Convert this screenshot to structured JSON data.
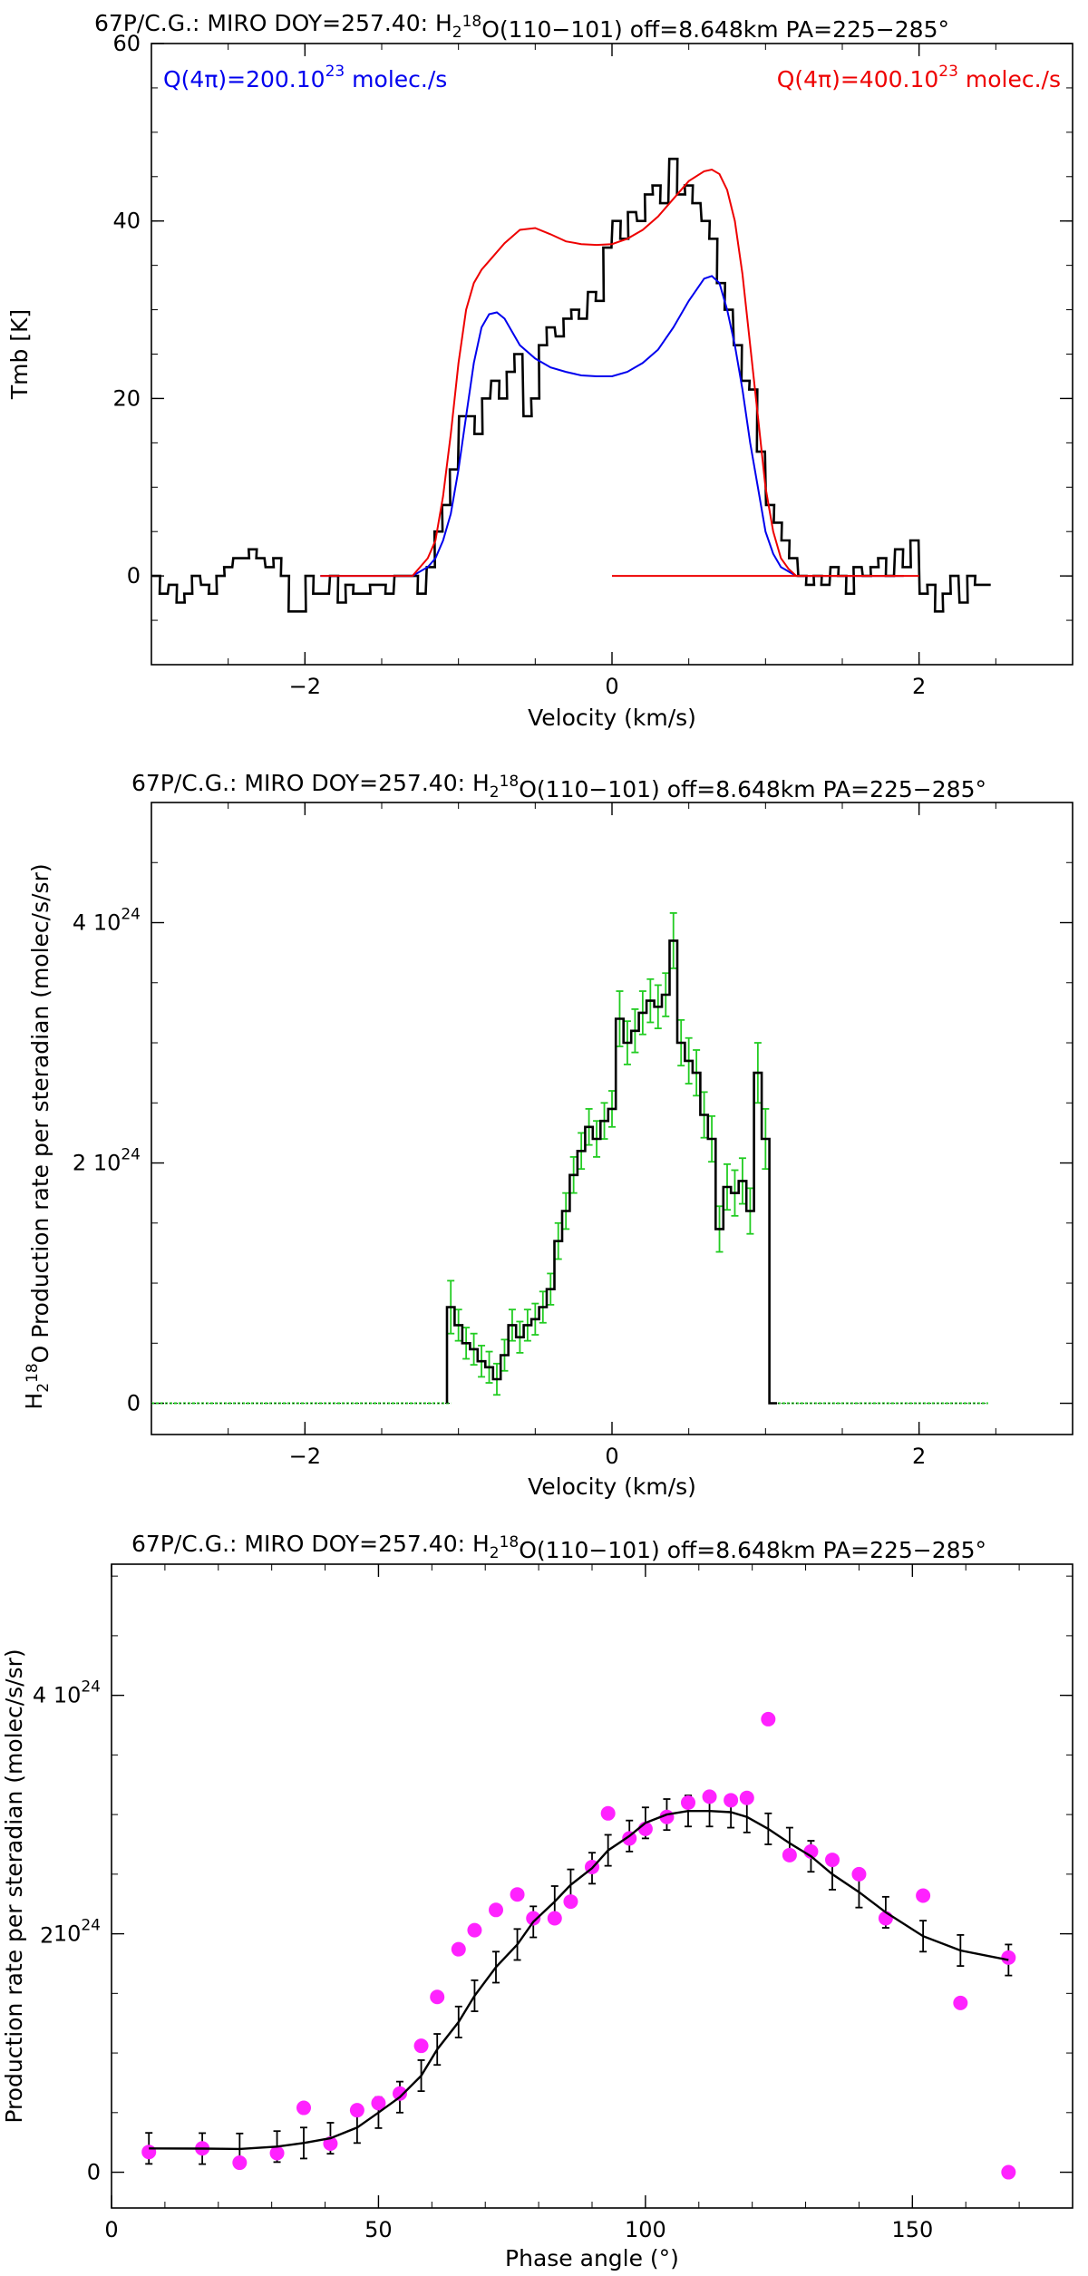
{
  "chart_data": [
    {
      "type": "line",
      "title_parts": [
        "67P/C.G.: MIRO DOY=257.40: H",
        "2",
        "18",
        "O(110−101) off=8.648km PA=225−285°"
      ],
      "xlabel": "Velocity (km/s)",
      "ylabel": "Tmb [K]",
      "xlim": [
        -3,
        3
      ],
      "ylim": [
        -10,
        60
      ],
      "xticks": [
        -2,
        0,
        2
      ],
      "xtick_labels": [
        "−2",
        "0",
        "2"
      ],
      "yticks": [
        0,
        20,
        40,
        60
      ],
      "ytick_labels": [
        "0",
        "20",
        "40",
        "60"
      ],
      "grid": false,
      "legend": "annotations at top-left and top-right",
      "annotations": [
        {
          "parts": [
            "Q(4π)=200.10",
            "23",
            " molec./s"
          ],
          "color": "#0000ee",
          "position": "top-left"
        },
        {
          "parts": [
            "Q(4π)=400.10",
            "23",
            " molec./s"
          ],
          "color": "#ee0000",
          "position": "top-right"
        }
      ],
      "series": [
        {
          "kind": "step",
          "color": "#000000",
          "x": [
            -2.97,
            -2.92,
            -2.86,
            -2.81,
            -2.76,
            -2.71,
            -2.65,
            -2.6,
            -2.55,
            -2.5,
            -2.44,
            -2.39,
            -2.34,
            -2.29,
            -2.23,
            -2.18,
            -2.13,
            -2.08,
            -2.02,
            -1.97,
            -1.92,
            -1.87,
            -1.81,
            -1.76,
            -1.71,
            -1.66,
            -1.6,
            -1.55,
            -1.5,
            -1.45,
            -1.39,
            -1.34,
            -1.29,
            -1.24,
            -1.18,
            -1.13,
            -1.08,
            -1.03,
            -0.97,
            -0.92,
            -0.87,
            -0.82,
            -0.76,
            -0.71,
            -0.66,
            -0.61,
            -0.55,
            -0.5,
            -0.45,
            -0.4,
            -0.34,
            -0.29,
            -0.24,
            -0.19,
            -0.13,
            -0.08,
            -0.03,
            0.03,
            0.08,
            0.13,
            0.19,
            0.24,
            0.29,
            0.34,
            0.4,
            0.45,
            0.5,
            0.55,
            0.61,
            0.66,
            0.71,
            0.76,
            0.82,
            0.87,
            0.92,
            0.97,
            1.03,
            1.08,
            1.13,
            1.18,
            1.24,
            1.29,
            1.34,
            1.39,
            1.45,
            1.5,
            1.55,
            1.6,
            1.66,
            1.71,
            1.76,
            1.81,
            1.87,
            1.92,
            1.97,
            2.03,
            2.08,
            2.13,
            2.18,
            2.23,
            2.29,
            2.34,
            2.39,
            2.44
          ],
          "y": [
            0,
            -2,
            -1,
            -3,
            -2,
            0,
            -1,
            -2,
            0,
            1,
            2,
            2,
            3,
            2,
            1,
            2,
            0,
            -4,
            -4,
            0,
            -2,
            -2,
            0,
            -3,
            -1,
            -2,
            -2,
            -1,
            -1,
            -2,
            0,
            0,
            0,
            -2,
            1,
            5,
            8,
            12,
            18,
            18,
            16,
            20,
            22,
            20,
            23,
            25,
            18,
            20,
            26,
            28,
            27,
            29,
            30,
            29,
            32,
            31,
            37,
            40,
            38,
            41,
            40,
            43,
            44,
            42,
            47,
            43,
            44,
            42,
            40,
            38,
            33,
            30,
            26,
            22,
            21,
            14,
            8,
            6,
            4,
            2,
            0,
            -1,
            0,
            -1,
            1,
            0,
            -2,
            1,
            0,
            1,
            2,
            0,
            3,
            1,
            4,
            -2,
            -1,
            -4,
            -2,
            0,
            -3,
            0,
            -1,
            -1
          ]
        },
        {
          "kind": "line",
          "color": "#0000ee",
          "x": [
            -1.9,
            -1.6,
            -1.3,
            -1.2,
            -1.15,
            -1.1,
            -1.05,
            -1.0,
            -0.95,
            -0.9,
            -0.85,
            -0.8,
            -0.75,
            -0.7,
            -0.65,
            -0.6,
            -0.5,
            -0.4,
            -0.3,
            -0.2,
            -0.1,
            0.0,
            0.1,
            0.2,
            0.3,
            0.4,
            0.5,
            0.6,
            0.65,
            0.7,
            0.75,
            0.8,
            0.85,
            0.9,
            0.95,
            1.0,
            1.05,
            1.1,
            1.15,
            1.2,
            1.3,
            1.6,
            1.9
          ],
          "y": [
            0,
            0,
            0,
            1,
            2,
            4,
            7,
            12,
            18,
            24,
            28,
            29.5,
            29.7,
            29,
            27.5,
            26,
            24.5,
            23.5,
            23,
            22.6,
            22.5,
            22.5,
            23,
            24,
            25.5,
            28,
            31,
            33.5,
            33.8,
            33,
            30,
            26,
            21,
            15,
            10,
            5,
            2.5,
            1,
            0.5,
            0,
            0,
            0,
            0
          ]
        },
        {
          "kind": "line",
          "color": "#ee0000",
          "x": [
            -1.9,
            -1.6,
            -1.3,
            -1.2,
            -1.15,
            -1.1,
            -1.05,
            -1.0,
            -0.95,
            -0.9,
            -0.85,
            -0.8,
            -0.7,
            -0.6,
            -0.5,
            -0.4,
            -0.3,
            -0.2,
            -0.1,
            0.0,
            0.1,
            0.2,
            0.3,
            0.4,
            0.5,
            0.6,
            0.65,
            0.7,
            0.75,
            0.8,
            0.85,
            0.9,
            0.95,
            1.0,
            1.05,
            1.1,
            1.15,
            1.2,
            1.3,
            1.6,
            1.9
          ],
          "y": [
            0,
            0,
            0,
            2,
            4,
            9,
            16,
            24,
            30,
            33,
            34.5,
            35.5,
            37.5,
            39,
            39.2,
            38.5,
            37.7,
            37.4,
            37.3,
            37.4,
            38,
            39,
            40.5,
            42.5,
            44.5,
            45.6,
            45.8,
            45.3,
            43.5,
            40,
            34,
            26,
            18,
            10,
            5,
            2,
            0.8,
            0,
            0,
            0,
            0
          ]
        },
        {
          "kind": "line",
          "color": "#ee0000",
          "x": [
            0,
            2
          ],
          "y": [
            0,
            0
          ]
        }
      ]
    },
    {
      "type": "line",
      "title_parts": [
        "67P/C.G.: MIRO DOY=257.40: H",
        "2",
        "18",
        "O(110−101) off=8.648km PA=225−285°"
      ],
      "xlabel": "Velocity (km/s)",
      "ylabel_parts": [
        "H",
        "2",
        "18",
        "O Production rate per steradian (molec/s/sr)"
      ],
      "xlim": [
        -3,
        3
      ],
      "ylim": [
        -2.6e+23,
        5e+24
      ],
      "xticks": [
        -2,
        0,
        2
      ],
      "xtick_labels": [
        "−2",
        "0",
        "2"
      ],
      "yticks": [
        0,
        2e+24,
        4e+24
      ],
      "ytick_labels": [
        [
          "0",
          ""
        ],
        [
          "2 10",
          "24"
        ],
        [
          "4 10",
          "24"
        ]
      ],
      "grid": false,
      "legend": "none",
      "series": [
        {
          "kind": "step",
          "color": "#000000",
          "errorbar_color": "#22cc22",
          "x": [
            -1.05,
            -1.0,
            -0.95,
            -0.9,
            -0.85,
            -0.8,
            -0.75,
            -0.7,
            -0.65,
            -0.6,
            -0.55,
            -0.5,
            -0.45,
            -0.4,
            -0.35,
            -0.3,
            -0.25,
            -0.2,
            -0.15,
            -0.1,
            -0.05,
            0.0,
            0.05,
            0.1,
            0.15,
            0.2,
            0.25,
            0.3,
            0.35,
            0.4,
            0.45,
            0.5,
            0.55,
            0.6,
            0.65,
            0.7,
            0.75,
            0.8,
            0.85,
            0.9,
            0.95,
            1.0,
            1.05
          ],
          "y": [
            8e+23,
            6.5e+23,
            5e+23,
            4.5e+23,
            3.5e+23,
            3e+23,
            2e+23,
            4e+23,
            6.5e+23,
            5.5e+23,
            6.5e+23,
            7e+23,
            8e+23,
            9.5e+23,
            1.35e+24,
            1.6e+24,
            1.9e+24,
            2.1e+24,
            2.3e+24,
            2.2e+24,
            2.35e+24,
            2.45e+24,
            3.2e+24,
            3e+24,
            3.1e+24,
            3.25e+24,
            3.35e+24,
            3.3e+24,
            3.4e+24,
            3.85e+24,
            3e+24,
            2.85e+24,
            2.75e+24,
            2.4e+24,
            2.2e+24,
            1.45e+24,
            1.8e+24,
            1.75e+24,
            1.85e+24,
            1.6e+24,
            2.75e+24,
            2.2e+24,
            0
          ],
          "err": [
            2.2e+23,
            1.3e+23,
            1.3e+23,
            1.3e+23,
            1.3e+23,
            1.3e+23,
            1.3e+23,
            1.3e+23,
            1.3e+23,
            1.3e+23,
            1.3e+23,
            1.3e+23,
            1.3e+23,
            1.3e+23,
            1.5e+23,
            1.5e+23,
            1.5e+23,
            1.5e+23,
            1.5e+23,
            1.5e+23,
            1.5e+23,
            1.5e+23,
            2.3e+23,
            1.8e+23,
            1.8e+23,
            1.8e+23,
            1.8e+23,
            1.8e+23,
            1.8e+23,
            2.3e+23,
            1.9e+23,
            1.9e+23,
            1.9e+23,
            1.9e+23,
            1.9e+23,
            1.9e+23,
            1.9e+23,
            1.9e+23,
            1.9e+23,
            1.9e+23,
            2.5e+23,
            2.5e+23,
            0
          ],
          "baseline_left": [
            -3,
            -1.05
          ],
          "baseline_right": [
            1.08,
            2.45
          ]
        }
      ]
    },
    {
      "type": "scatter",
      "title_parts": [
        "67P/C.G.: MIRO DOY=257.40: H",
        "2",
        "18",
        "O(110−101) off=8.648km PA=225−285°"
      ],
      "xlabel": "Phase angle (°)",
      "ylabel": "Production rate per steradian (molec/s/sr)",
      "xlim": [
        0,
        180
      ],
      "ylim": [
        -3e+23,
        5.1e+24
      ],
      "xticks": [
        0,
        50,
        100,
        150
      ],
      "xtick_labels": [
        "0",
        "50",
        "100",
        "150"
      ],
      "yticks": [
        0,
        2e+24,
        4e+24
      ],
      "ytick_labels": [
        [
          "0",
          ""
        ],
        [
          "10",
          "24"
        ],
        [
          "4 10",
          "24"
        ]
      ],
      "ytick_overlap_glyph": "2",
      "grid": false,
      "legend": "none",
      "series": [
        {
          "kind": "points",
          "color": "#ff22ff",
          "x": [
            7,
            17,
            24,
            31,
            36,
            41,
            46,
            50,
            54,
            58,
            61,
            65,
            68,
            72,
            76,
            79,
            83,
            86,
            90,
            93,
            97,
            100,
            104,
            108,
            112,
            116,
            119,
            123,
            127,
            131,
            135,
            140,
            145,
            152,
            159,
            168,
            168
          ],
          "y": [
            1.7e+23,
            2e+23,
            8e+22,
            1.6e+23,
            5.4e+23,
            2.4e+23,
            5.2e+23,
            5.8e+23,
            6.6e+23,
            1.06e+24,
            1.47e+24,
            1.87e+24,
            2.03e+24,
            2.2e+24,
            2.33e+24,
            2.13e+24,
            2.13e+24,
            2.27e+24,
            2.56e+24,
            3.01e+24,
            2.8e+24,
            2.88e+24,
            2.98e+24,
            3.1e+24,
            3.15e+24,
            3.12e+24,
            3.14e+24,
            3.8e+24,
            2.66e+24,
            2.69e+24,
            2.62e+24,
            2.5e+24,
            2.13e+24,
            2.32e+24,
            1.42e+24,
            1.8e+24,
            0
          ]
        },
        {
          "kind": "line_with_errorbars",
          "color": "#000000",
          "x": [
            7,
            17,
            24,
            31,
            36,
            41,
            46,
            50,
            54,
            58,
            61,
            65,
            68,
            72,
            76,
            79,
            83,
            86,
            90,
            93,
            97,
            100,
            104,
            108,
            112,
            116,
            119,
            123,
            127,
            131,
            135,
            140,
            145,
            152,
            159,
            168
          ],
          "y": [
            2e+23,
            1.98e+23,
            1.95e+23,
            2.15e+23,
            2.45e+23,
            2.85e+23,
            3.75e+23,
            5e+23,
            6.3e+23,
            8.1e+23,
            1.03e+24,
            1.26e+24,
            1.48e+24,
            1.72e+24,
            1.91e+24,
            2.1e+24,
            2.27e+24,
            2.41e+24,
            2.55e+24,
            2.7e+24,
            2.82e+24,
            2.93e+24,
            3e+24,
            3.03e+24,
            3.03e+24,
            3.02e+24,
            2.98e+24,
            2.88e+24,
            2.76e+24,
            2.65e+24,
            2.5e+24,
            2.35e+24,
            2.18e+24,
            1.98e+24,
            1.86e+24,
            1.78e+24
          ],
          "err": [
            1.3e+23,
            1.3e+23,
            1.3e+23,
            1.3e+23,
            1.3e+23,
            1.3e+23,
            1.3e+23,
            1.3e+23,
            1.3e+23,
            1.3e+23,
            1.3e+23,
            1.3e+23,
            1.3e+23,
            1.3e+23,
            1.3e+23,
            1.3e+23,
            1.3e+23,
            1.3e+23,
            1.3e+23,
            1.3e+23,
            1.3e+23,
            1.3e+23,
            1.3e+23,
            1.3e+23,
            1.3e+23,
            1.3e+23,
            1.3e+23,
            1.3e+23,
            1.3e+23,
            1.3e+23,
            1.3e+23,
            1.3e+23,
            1.3e+23,
            1.3e+23,
            1.3e+23,
            1.3e+23
          ]
        }
      ]
    }
  ]
}
